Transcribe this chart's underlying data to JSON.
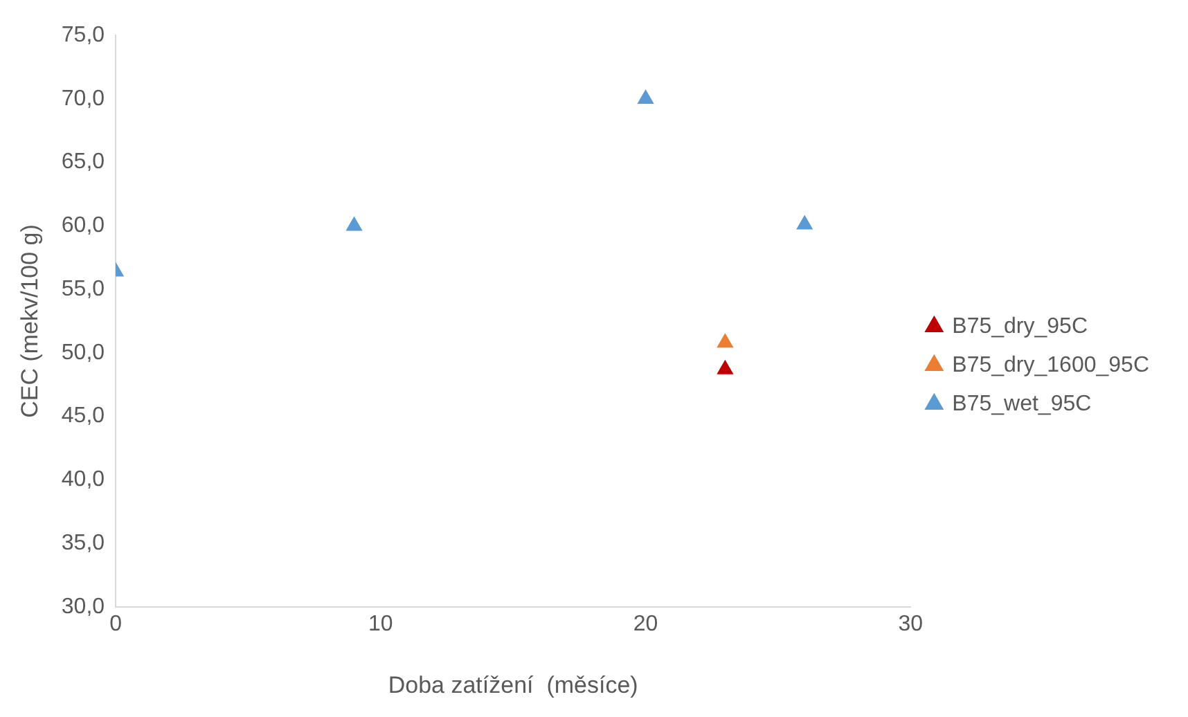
{
  "chart_data": {
    "type": "scatter",
    "xlabel": "Doba zatížení  (měsíce)",
    "ylabel": "CEC (mekv/100 g)",
    "xlim": [
      0,
      30
    ],
    "xticks": [
      0,
      10,
      20,
      30
    ],
    "ylim": [
      30,
      75
    ],
    "yticks": [
      {
        "value": 30,
        "label": "30,0"
      },
      {
        "value": 35,
        "label": "35,0"
      },
      {
        "value": 40,
        "label": "40,0"
      },
      {
        "value": 45,
        "label": "45,0"
      },
      {
        "value": 50,
        "label": "50,0"
      },
      {
        "value": 55,
        "label": "55,0"
      },
      {
        "value": 60,
        "label": "60,0"
      },
      {
        "value": 65,
        "label": "65,0"
      },
      {
        "value": 70,
        "label": "70,0"
      },
      {
        "value": 75,
        "label": "75,0"
      }
    ],
    "marker": "triangle",
    "legend": "right",
    "series": [
      {
        "name": "B75_dry_95C",
        "color": "#c00000",
        "x": [
          23
        ],
        "values": [
          48.7
        ]
      },
      {
        "name": "B75_dry_1600_95C",
        "color": "#ed7d31",
        "x": [
          23
        ],
        "values": [
          50.8
        ]
      },
      {
        "name": "B75_wet_95C",
        "color": "#5b9bd5",
        "x": [
          0,
          9,
          20,
          26
        ],
        "values": [
          56.4,
          60.0,
          70.0,
          60.1
        ]
      }
    ]
  }
}
